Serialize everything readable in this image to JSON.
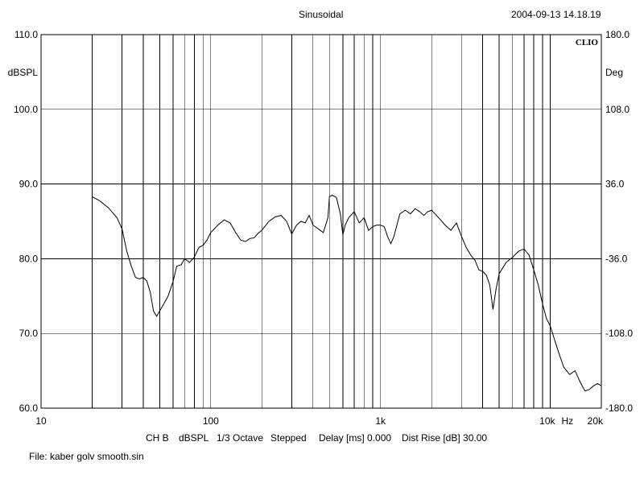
{
  "header": {
    "mode": "Sinusoidal",
    "timestamp": "2004-09-13 14.18.19"
  },
  "footer": {
    "settings": {
      "channel": "CH B",
      "unit": "dBSPL",
      "smoothing": "1/3 Octave",
      "sweep": "Stepped",
      "delay": "Delay [ms] 0.000",
      "dist_rise": "Dist Rise [dB] 30.00"
    },
    "file": "File: kaber golv smooth.sin"
  },
  "chart_data": {
    "type": "line",
    "logo": "CLIO",
    "xscale": "log",
    "xlim": [
      10,
      20000
    ],
    "ylim": [
      60,
      110
    ],
    "y2lim": [
      -180,
      180
    ],
    "grid": true,
    "left_unit": "dBSPL",
    "right_unit": "Deg",
    "x_tick_labels": [
      {
        "x": 10,
        "label": "10"
      },
      {
        "x": 100,
        "label": "100"
      },
      {
        "x": 1000,
        "label": "1k"
      },
      {
        "x": 10000,
        "label": "10k"
      },
      {
        "x": 20000,
        "label": "20k"
      }
    ],
    "x_unit_label": "Hz",
    "y_ticks": [
      {
        "y": 110,
        "label": "110.0"
      },
      {
        "y": 100,
        "label": "100.0"
      },
      {
        "y": 90,
        "label": "90.0"
      },
      {
        "y": 80,
        "label": "80.0"
      },
      {
        "y": 70,
        "label": "70.0"
      },
      {
        "y": 60,
        "label": "60.0"
      }
    ],
    "y2_ticks": [
      {
        "y": 180,
        "label": "180.0"
      },
      {
        "y": 108,
        "label": "108.0"
      },
      {
        "y": 36,
        "label": "36.0"
      },
      {
        "y": -36,
        "label": "-36.0"
      },
      {
        "y": -108,
        "label": "-108.0"
      },
      {
        "y": -180,
        "label": "-180.0"
      }
    ],
    "series": [
      {
        "x": [
          20,
          22,
          25,
          28,
          30,
          32,
          34,
          36,
          38,
          40,
          42,
          44,
          46,
          48,
          50,
          53,
          56,
          60,
          63,
          67,
          70,
          75,
          80,
          85,
          90,
          95,
          100,
          110,
          120,
          130,
          140,
          150,
          160,
          170,
          180,
          190,
          200,
          220,
          240,
          260,
          280,
          300,
          320,
          340,
          360,
          380,
          400,
          430,
          460,
          490,
          500,
          520,
          550,
          580,
          600,
          620,
          650,
          700,
          750,
          800,
          850,
          900,
          950,
          1000,
          1050,
          1100,
          1150,
          1200,
          1300,
          1400,
          1500,
          1600,
          1700,
          1800,
          1900,
          2000,
          2200,
          2400,
          2600,
          2800,
          3000,
          3200,
          3400,
          3600,
          3800,
          4000,
          4200,
          4400,
          4600,
          4800,
          5000,
          5500,
          6000,
          6500,
          7000,
          7500,
          8000,
          8500,
          9000,
          9500,
          10000,
          11000,
          12000,
          13000,
          14000,
          15000,
          16000,
          17000,
          18000,
          19000,
          20000
        ],
        "y": [
          88.3,
          87.8,
          86.8,
          85.5,
          84.0,
          81.0,
          79.0,
          77.5,
          77.3,
          77.5,
          77.0,
          75.5,
          73.0,
          72.3,
          73.0,
          74.0,
          75.0,
          77.0,
          79.0,
          79.2,
          80.0,
          79.5,
          80.2,
          81.5,
          81.8,
          82.5,
          83.5,
          84.5,
          85.2,
          84.8,
          83.5,
          82.5,
          82.3,
          82.7,
          82.8,
          83.4,
          83.8,
          85.0,
          85.6,
          85.8,
          85.0,
          83.3,
          84.5,
          85.0,
          84.8,
          85.8,
          84.5,
          84.0,
          83.5,
          85.5,
          88.3,
          88.5,
          88.2,
          86.0,
          83.2,
          84.5,
          85.5,
          86.3,
          84.8,
          85.5,
          83.8,
          84.3,
          84.5,
          84.5,
          84.3,
          83.0,
          82.0,
          83.0,
          86.0,
          86.5,
          86.0,
          86.7,
          86.3,
          85.8,
          86.3,
          86.5,
          85.5,
          84.5,
          83.8,
          84.8,
          83.0,
          81.5,
          80.5,
          79.8,
          78.5,
          78.3,
          77.8,
          76.5,
          73.2,
          76.0,
          78.0,
          79.5,
          80.2,
          81.0,
          81.3,
          80.5,
          78.5,
          76.5,
          74.0,
          72.0,
          71.0,
          68.0,
          65.5,
          64.5,
          65.0,
          63.5,
          62.3,
          62.5,
          63.0,
          63.3,
          63.0
        ]
      }
    ]
  }
}
